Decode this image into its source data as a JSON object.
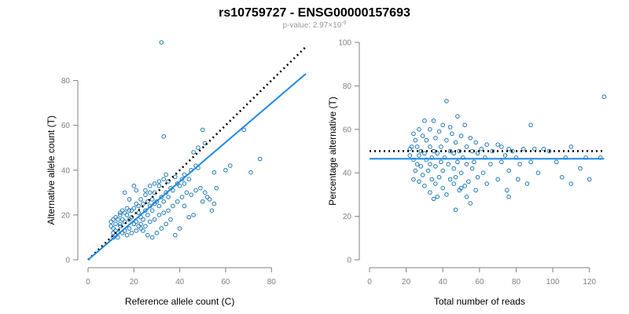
{
  "figure": {
    "title": "rs10759727 - ENSG00000157693",
    "subtitle_prefix": "p-value: 2.97×10",
    "subtitle_exponent": "-9",
    "colors": {
      "points": "#1f78b4",
      "fit_line": "#1f88e5",
      "reference_line": "#000000"
    }
  },
  "chart_data": [
    {
      "type": "scatter",
      "xlabel": "Reference allele count (C)",
      "ylabel": "Alternative allele count (T)",
      "xlim": [
        0,
        95
      ],
      "ylim": [
        0,
        97
      ],
      "xticks": [
        0,
        20,
        40,
        60,
        80
      ],
      "yticks": [
        0,
        20,
        40,
        60,
        80
      ],
      "grid": false,
      "reference_line": {
        "x": [
          0,
          95
        ],
        "y": [
          0,
          95
        ],
        "style": "dotted"
      },
      "fit_line": {
        "x": [
          0,
          95
        ],
        "y": [
          0,
          83
        ]
      },
      "points": [
        [
          32,
          97
        ],
        [
          33,
          55
        ],
        [
          50,
          58
        ],
        [
          68,
          58
        ],
        [
          51,
          52
        ],
        [
          48,
          50
        ],
        [
          46,
          48
        ],
        [
          62,
          42
        ],
        [
          75,
          45
        ],
        [
          71,
          39
        ],
        [
          47,
          42
        ],
        [
          45,
          40
        ],
        [
          42,
          38
        ],
        [
          41,
          36
        ],
        [
          40,
          33
        ],
        [
          38,
          37
        ],
        [
          35,
          35
        ],
        [
          34,
          38
        ],
        [
          33,
          36
        ],
        [
          31,
          33
        ],
        [
          29,
          30
        ],
        [
          27,
          30
        ],
        [
          25,
          29
        ],
        [
          28,
          27
        ],
        [
          26,
          26
        ],
        [
          24,
          25
        ],
        [
          22,
          24
        ],
        [
          20,
          23
        ],
        [
          18,
          22
        ],
        [
          16,
          21
        ],
        [
          14,
          20
        ],
        [
          12,
          19
        ],
        [
          11,
          18
        ],
        [
          10,
          17
        ],
        [
          10,
          15
        ],
        [
          11,
          14
        ],
        [
          12,
          13
        ],
        [
          13,
          12
        ],
        [
          15,
          12
        ],
        [
          17,
          11
        ],
        [
          19,
          12
        ],
        [
          21,
          13
        ],
        [
          23,
          14
        ],
        [
          25,
          15
        ],
        [
          27,
          17
        ],
        [
          29,
          18
        ],
        [
          31,
          20
        ],
        [
          33,
          21
        ],
        [
          35,
          22
        ],
        [
          37,
          24
        ],
        [
          39,
          26
        ],
        [
          41,
          28
        ],
        [
          43,
          30
        ],
        [
          45,
          29
        ],
        [
          47,
          31
        ],
        [
          49,
          32
        ],
        [
          51,
          30
        ],
        [
          53,
          27
        ],
        [
          55,
          25
        ],
        [
          54,
          22
        ],
        [
          50,
          26
        ],
        [
          46,
          20
        ],
        [
          44,
          19
        ],
        [
          42,
          24
        ],
        [
          40,
          14
        ],
        [
          38,
          11
        ],
        [
          36,
          18
        ],
        [
          34,
          16
        ],
        [
          32,
          14
        ],
        [
          30,
          12
        ],
        [
          28,
          10
        ],
        [
          26,
          11
        ],
        [
          24,
          13
        ],
        [
          22,
          15
        ],
        [
          20,
          16
        ],
        [
          18,
          14
        ],
        [
          16,
          13
        ],
        [
          14,
          15
        ],
        [
          12,
          16
        ],
        [
          11,
          12
        ],
        [
          13,
          10
        ],
        [
          15,
          18
        ],
        [
          17,
          20
        ],
        [
          19,
          22
        ],
        [
          21,
          25
        ],
        [
          23,
          27
        ],
        [
          25,
          31
        ],
        [
          27,
          33
        ],
        [
          29,
          34
        ],
        [
          31,
          35
        ],
        [
          20,
          33
        ],
        [
          14,
          21
        ],
        [
          16,
          30
        ],
        [
          18,
          27
        ],
        [
          21,
          31
        ],
        [
          23,
          19
        ],
        [
          26,
          20
        ],
        [
          28,
          22
        ],
        [
          30,
          26
        ],
        [
          32,
          28
        ],
        [
          34,
          30
        ],
        [
          36,
          32
        ],
        [
          24,
          18
        ],
        [
          22,
          21
        ],
        [
          18,
          18
        ],
        [
          16,
          17
        ],
        [
          14,
          16
        ],
        [
          13,
          18
        ],
        [
          11,
          10
        ],
        [
          12,
          11
        ],
        [
          15,
          22
        ],
        [
          17,
          23
        ],
        [
          19,
          19
        ],
        [
          21,
          17
        ],
        [
          23,
          16
        ],
        [
          25,
          22
        ],
        [
          27,
          24
        ],
        [
          29,
          25
        ],
        [
          31,
          24
        ],
        [
          33,
          26
        ],
        [
          35,
          28
        ],
        [
          37,
          31
        ],
        [
          39,
          34
        ],
        [
          55,
          39
        ],
        [
          60,
          40
        ],
        [
          56,
          32
        ],
        [
          52,
          28
        ],
        [
          48,
          41
        ],
        [
          44,
          36
        ],
        [
          42,
          34
        ]
      ]
    },
    {
      "type": "scatter",
      "xlabel": "Total number of reads",
      "ylabel": "Percentage alternative (T)",
      "xlim": [
        0,
        130
      ],
      "ylim": [
        0,
        100
      ],
      "xticks": [
        0,
        20,
        40,
        60,
        80,
        100,
        120
      ],
      "yticks": [
        0,
        20,
        40,
        60,
        80,
        100
      ],
      "grid": false,
      "reference_line": {
        "x": [
          0,
          128
        ],
        "y": [
          50,
          50
        ],
        "style": "dotted"
      },
      "fit_line": {
        "x": [
          0,
          128
        ],
        "y": [
          46.5,
          46.5
        ]
      },
      "points": [
        [
          128,
          75
        ],
        [
          42,
          73
        ],
        [
          48,
          66
        ],
        [
          30,
          64
        ],
        [
          35,
          64
        ],
        [
          40,
          62
        ],
        [
          52,
          62
        ],
        [
          88,
          62
        ],
        [
          27,
          60
        ],
        [
          33,
          60
        ],
        [
          38,
          59
        ],
        [
          45,
          58
        ],
        [
          24,
          58
        ],
        [
          29,
          57
        ],
        [
          50,
          57
        ],
        [
          55,
          56
        ],
        [
          36,
          56
        ],
        [
          25,
          55
        ],
        [
          31,
          55
        ],
        [
          42,
          55
        ],
        [
          47,
          54
        ],
        [
          58,
          54
        ],
        [
          64,
          53
        ],
        [
          70,
          53
        ],
        [
          72,
          52
        ],
        [
          26,
          52
        ],
        [
          33,
          52
        ],
        [
          39,
          52
        ],
        [
          53,
          52
        ],
        [
          61,
          51
        ],
        [
          76,
          51
        ],
        [
          84,
          51
        ],
        [
          90,
          51
        ],
        [
          95,
          51
        ],
        [
          110,
          52
        ],
        [
          22,
          51
        ],
        [
          28,
          50
        ],
        [
          35,
          50
        ],
        [
          44,
          50
        ],
        [
          49,
          50
        ],
        [
          56,
          50
        ],
        [
          67,
          50
        ],
        [
          78,
          50
        ],
        [
          98,
          50
        ],
        [
          30,
          49
        ],
        [
          37,
          49
        ],
        [
          46,
          49
        ],
        [
          59,
          49
        ],
        [
          74,
          48
        ],
        [
          22,
          48
        ],
        [
          27,
          48
        ],
        [
          34,
          47
        ],
        [
          41,
          47
        ],
        [
          51,
          47
        ],
        [
          63,
          47
        ],
        [
          80,
          47
        ],
        [
          107,
          47
        ],
        [
          118,
          47
        ],
        [
          126,
          47
        ],
        [
          24,
          46
        ],
        [
          31,
          46
        ],
        [
          39,
          45
        ],
        [
          48,
          45
        ],
        [
          57,
          45
        ],
        [
          72,
          45
        ],
        [
          88,
          45
        ],
        [
          102,
          45
        ],
        [
          26,
          44
        ],
        [
          33,
          44
        ],
        [
          43,
          44
        ],
        [
          53,
          44
        ],
        [
          66,
          44
        ],
        [
          82,
          44
        ],
        [
          28,
          43
        ],
        [
          36,
          43
        ],
        [
          46,
          42
        ],
        [
          56,
          42
        ],
        [
          76,
          41
        ],
        [
          115,
          42
        ],
        [
          25,
          41
        ],
        [
          32,
          41
        ],
        [
          40,
          41
        ],
        [
          50,
          40
        ],
        [
          62,
          40
        ],
        [
          92,
          40
        ],
        [
          29,
          39
        ],
        [
          38,
          38
        ],
        [
          47,
          38
        ],
        [
          59,
          38
        ],
        [
          105,
          38
        ],
        [
          24,
          37
        ],
        [
          34,
          37
        ],
        [
          44,
          37
        ],
        [
          54,
          36
        ],
        [
          70,
          37
        ],
        [
          81,
          37
        ],
        [
          27,
          36
        ],
        [
          36,
          35
        ],
        [
          46,
          35
        ],
        [
          52,
          34
        ],
        [
          64,
          35
        ],
        [
          86,
          35
        ],
        [
          110,
          35
        ],
        [
          30,
          34
        ],
        [
          40,
          33
        ],
        [
          49,
          32
        ],
        [
          58,
          32
        ],
        [
          75,
          32
        ],
        [
          33,
          31
        ],
        [
          42,
          30
        ],
        [
          37,
          29
        ],
        [
          53,
          29
        ],
        [
          76,
          29
        ],
        [
          35,
          28
        ],
        [
          55,
          26
        ],
        [
          47,
          23
        ],
        [
          120,
          37
        ],
        [
          23,
          52
        ],
        [
          44,
          61
        ],
        [
          50,
          33
        ]
      ]
    }
  ]
}
